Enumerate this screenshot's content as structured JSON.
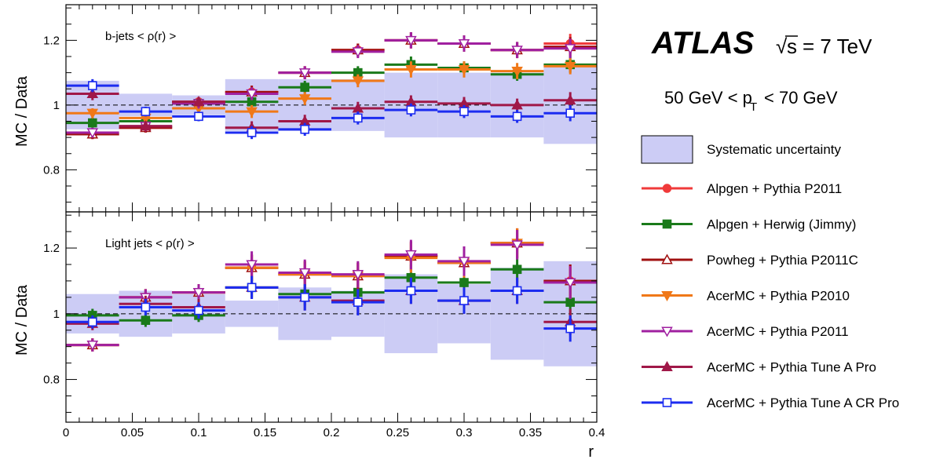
{
  "labels": {
    "atlas": "ATLAS",
    "sqrt_s": "s",
    "energy": "= 7 TeV",
    "pt_left": "50 GeV < p",
    "pt_sub": "T",
    "pt_right": "< 70 GeV"
  },
  "legend": {
    "systematic": "Systematic uncertainty",
    "systematic_color": "#ccccf5",
    "entries": [
      {
        "label": "Alpgen + Pythia P2011",
        "color": "#f03a3a",
        "marker": "circle"
      },
      {
        "label": "Alpgen + Herwig (Jimmy)",
        "color": "#1a7a1a",
        "marker": "square"
      },
      {
        "label": "Powheg + Pythia P2011C",
        "color": "#a01010",
        "marker": "triangle-up-open"
      },
      {
        "label": "AcerMC + Pythia P2010",
        "color": "#f07818",
        "marker": "triangle-down"
      },
      {
        "label": "AcerMC + Pythia P2011",
        "color": "#a020a0",
        "marker": "triangle-down-open"
      },
      {
        "label": "AcerMC + Pythia Tune A Pro",
        "color": "#a01848",
        "marker": "triangle-up"
      },
      {
        "label": "AcerMC + Pythia Tune A CR Pro",
        "color": "#1c2cf0",
        "marker": "square-open"
      }
    ]
  },
  "chart_data": [
    {
      "type": "scatter",
      "title": "b-jets  < ρ(r) >",
      "xlabel": "r",
      "ylabel": "MC / Data",
      "xlim": [
        0,
        0.4
      ],
      "ylim": [
        0.67,
        1.31
      ],
      "yticks": [
        "0.8",
        "1",
        "1.2"
      ],
      "reference_line": 1,
      "bins": [
        0.02,
        0.06,
        0.1,
        0.14,
        0.18,
        0.22,
        0.26,
        0.3,
        0.34,
        0.38
      ],
      "systematic": [
        0.075,
        0.035,
        0.03,
        0.08,
        0.08,
        0.08,
        0.1,
        0.1,
        0.1,
        0.12
      ],
      "series": [
        {
          "name": "Alpgen + Pythia P2011",
          "values": [
            0.91,
            0.93,
            1.01,
            1.04,
            1.1,
            1.17,
            1.2,
            1.19,
            1.17,
            1.19
          ],
          "errors": [
            0.015,
            0.015,
            0.015,
            0.02,
            0.02,
            0.02,
            0.025,
            0.025,
            0.025,
            0.03
          ]
        },
        {
          "name": "Alpgen + Herwig (Jimmy)",
          "values": [
            0.945,
            0.95,
            1.005,
            1.01,
            1.055,
            1.1,
            1.125,
            1.115,
            1.095,
            1.125
          ],
          "errors": [
            0.015,
            0.015,
            0.015,
            0.02,
            0.02,
            0.02,
            0.025,
            0.02,
            0.02,
            0.025
          ]
        },
        {
          "name": "Powheg + Pythia P2011C",
          "values": [
            0.91,
            0.93,
            1.01,
            1.04,
            1.1,
            1.17,
            1.2,
            1.19,
            1.17,
            1.18
          ],
          "errors": [
            0.015,
            0.015,
            0.015,
            0.02,
            0.02,
            0.02,
            0.025,
            0.025,
            0.025,
            0.03
          ]
        },
        {
          "name": "AcerMC + Pythia P2010",
          "values": [
            0.975,
            0.96,
            0.99,
            0.98,
            1.02,
            1.075,
            1.11,
            1.11,
            1.105,
            1.12
          ],
          "errors": [
            0.015,
            0.015,
            0.015,
            0.02,
            0.02,
            0.02,
            0.025,
            0.025,
            0.025,
            0.025
          ]
        },
        {
          "name": "AcerMC + Pythia P2011",
          "values": [
            0.915,
            0.935,
            1.005,
            1.035,
            1.1,
            1.165,
            1.2,
            1.19,
            1.17,
            1.175
          ],
          "errors": [
            0.015,
            0.015,
            0.015,
            0.02,
            0.02,
            0.02,
            0.025,
            0.025,
            0.025,
            0.03
          ]
        },
        {
          "name": "AcerMC + Pythia Tune A Pro",
          "values": [
            1.035,
            0.935,
            1.01,
            0.93,
            0.95,
            0.99,
            1.01,
            1.005,
            1.0,
            1.015
          ],
          "errors": [
            0.02,
            0.015,
            0.015,
            0.02,
            0.02,
            0.02,
            0.02,
            0.02,
            0.02,
            0.025
          ]
        },
        {
          "name": "AcerMC + Pythia Tune A CR Pro",
          "values": [
            1.06,
            0.98,
            0.965,
            0.915,
            0.925,
            0.96,
            0.985,
            0.98,
            0.965,
            0.975
          ],
          "errors": [
            0.02,
            0.015,
            0.015,
            0.02,
            0.02,
            0.02,
            0.02,
            0.02,
            0.02,
            0.025
          ]
        }
      ]
    },
    {
      "type": "scatter",
      "title": "Light jets   < ρ(r) >",
      "xlabel": "r",
      "ylabel": "MC / Data",
      "xlim": [
        0,
        0.4
      ],
      "ylim": [
        0.67,
        1.31
      ],
      "xticks": [
        "0",
        "0.05",
        "0.1",
        "0.15",
        "0.2",
        "0.25",
        "0.3",
        "0.35",
        "0.4"
      ],
      "yticks": [
        "0.8",
        "1",
        "1.2"
      ],
      "reference_line": 1,
      "bins": [
        0.02,
        0.06,
        0.1,
        0.14,
        0.18,
        0.22,
        0.26,
        0.3,
        0.34,
        0.38
      ],
      "systematic": [
        0.06,
        0.07,
        0.06,
        0.04,
        0.08,
        0.07,
        0.12,
        0.09,
        0.14,
        0.16
      ],
      "series": [
        {
          "name": "Alpgen + Pythia P2011",
          "values": [
            0.905,
            1.05,
            1.065,
            1.14,
            1.12,
            1.115,
            1.175,
            1.155,
            1.215,
            1.1
          ],
          "errors": [
            0.02,
            0.025,
            0.025,
            0.04,
            0.04,
            0.04,
            0.045,
            0.045,
            0.045,
            0.05
          ]
        },
        {
          "name": "Alpgen + Herwig (Jimmy)",
          "values": [
            0.995,
            0.98,
            0.995,
            1.08,
            1.06,
            1.065,
            1.11,
            1.095,
            1.135,
            1.035
          ],
          "errors": [
            0.02,
            0.02,
            0.02,
            0.03,
            0.035,
            0.035,
            0.04,
            0.04,
            0.04,
            0.05
          ]
        },
        {
          "name": "Powheg + Pythia P2011C",
          "values": [
            0.905,
            1.05,
            1.065,
            1.14,
            1.12,
            1.115,
            1.175,
            1.155,
            1.215,
            1.1
          ],
          "errors": [
            0.02,
            0.025,
            0.025,
            0.04,
            0.04,
            0.04,
            0.045,
            0.045,
            0.045,
            0.05
          ]
        },
        {
          "name": "AcerMC + Pythia P2010",
          "values": [
            0.905,
            1.05,
            1.065,
            1.14,
            1.12,
            1.115,
            1.17,
            1.155,
            1.215,
            1.095
          ],
          "errors": [
            0.02,
            0.025,
            0.025,
            0.04,
            0.04,
            0.04,
            0.045,
            0.045,
            0.045,
            0.05
          ]
        },
        {
          "name": "AcerMC + Pythia P2011",
          "values": [
            0.905,
            1.05,
            1.065,
            1.15,
            1.125,
            1.12,
            1.18,
            1.16,
            1.21,
            1.095
          ],
          "errors": [
            0.02,
            0.025,
            0.025,
            0.04,
            0.04,
            0.04,
            0.045,
            0.045,
            0.045,
            0.05
          ]
        },
        {
          "name": "AcerMC + Pythia Tune A Pro",
          "values": [
            0.97,
            1.03,
            1.02,
            1.08,
            1.05,
            1.04,
            1.07,
            1.04,
            1.07,
            0.975
          ],
          "errors": [
            0.02,
            0.025,
            0.025,
            0.035,
            0.04,
            0.04,
            0.04,
            0.04,
            0.04,
            0.04
          ]
        },
        {
          "name": "AcerMC + Pythia Tune A CR Pro",
          "values": [
            0.975,
            1.02,
            1.01,
            1.08,
            1.05,
            1.035,
            1.07,
            1.04,
            1.07,
            0.955
          ],
          "errors": [
            0.02,
            0.025,
            0.025,
            0.035,
            0.04,
            0.04,
            0.04,
            0.04,
            0.04,
            0.04
          ]
        }
      ]
    }
  ]
}
